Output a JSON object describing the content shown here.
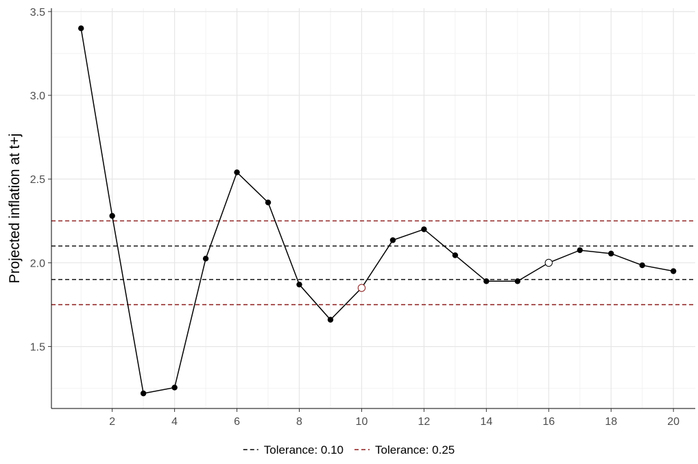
{
  "chart_data": {
    "type": "line",
    "title": "",
    "xlabel": "",
    "ylabel": "Projected inflation at t+j",
    "xlim": [
      0.05,
      20.7
    ],
    "ylim": [
      1.13,
      3.52
    ],
    "x_ticks": [
      2,
      4,
      6,
      8,
      10,
      12,
      14,
      16,
      18,
      20
    ],
    "y_ticks": [
      1.5,
      2.0,
      2.5,
      3.0,
      3.5
    ],
    "y_tick_labels": [
      "1.5",
      "2.0",
      "2.5",
      "3.0",
      "3.5"
    ],
    "grid": true,
    "series": [
      {
        "x": [
          1,
          2,
          3,
          4,
          5,
          6,
          7,
          8,
          9,
          10,
          11,
          12,
          13,
          14,
          15,
          16,
          17,
          18,
          19,
          20
        ],
        "values": [
          3.4,
          2.28,
          1.22,
          1.255,
          2.025,
          2.54,
          2.36,
          1.87,
          1.66,
          1.85,
          2.135,
          2.2,
          2.045,
          1.89,
          1.89,
          2.0,
          2.075,
          2.055,
          1.985,
          1.95
        ],
        "color": "#000000",
        "hollow_points": [
          {
            "x": 10,
            "edge_color": "#8b1a1a"
          },
          {
            "x": 16,
            "edge_color": "#000000"
          }
        ]
      }
    ],
    "reference_lines": [
      {
        "name": "Tolerance: 0.10",
        "values": [
          1.9,
          2.1
        ],
        "color": "#000000"
      },
      {
        "name": "Tolerance: 0.25",
        "values": [
          1.75,
          2.25
        ],
        "color": "#8b1a1a"
      }
    ],
    "legend": {
      "position": "bottom",
      "entries": [
        "Tolerance: 0.10",
        "Tolerance: 0.25"
      ]
    }
  }
}
